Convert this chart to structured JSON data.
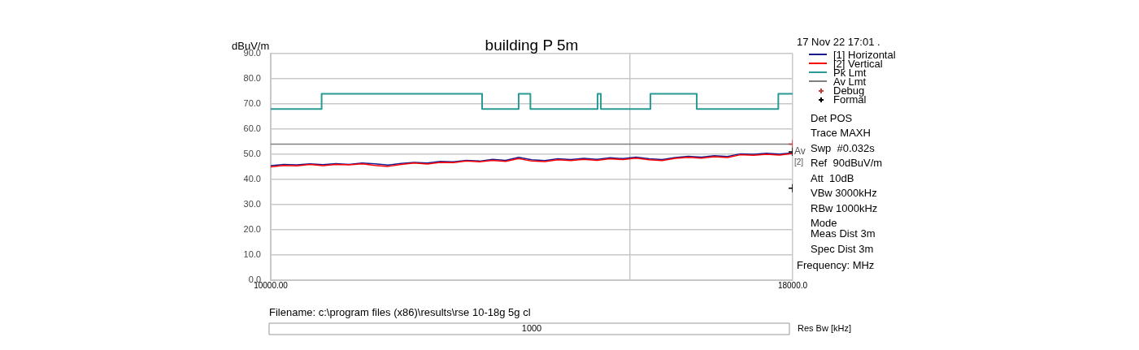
{
  "chart_data": {
    "type": "line",
    "title": "building P 5m",
    "ylabel": "dBuV/m",
    "xlabel": "Frequency: MHz",
    "xlim": [
      10000,
      18000
    ],
    "xticks": [
      {
        "value": 10000,
        "label": "10000.00"
      },
      {
        "value": 15500,
        "label": null
      },
      {
        "value": 18000,
        "label": "18000.0"
      }
    ],
    "ylim": [
      0,
      90
    ],
    "yticks": [
      {
        "value": 0,
        "label": "0.0"
      },
      {
        "value": 10,
        "label": "10.0"
      },
      {
        "value": 20,
        "label": "20.0"
      },
      {
        "value": 30,
        "label": "30.0"
      },
      {
        "value": 40,
        "label": "40.0"
      },
      {
        "value": 50,
        "label": "50.0"
      },
      {
        "value": 60,
        "label": "60.0"
      },
      {
        "value": 70,
        "label": "70.0"
      },
      {
        "value": 80,
        "label": "80.0"
      },
      {
        "value": 90,
        "label": "90.0"
      }
    ],
    "grid": true,
    "legend": "right",
    "x": [
      10000,
      10200,
      10400,
      10600,
      10800,
      11000,
      11200,
      11400,
      11600,
      11800,
      12000,
      12200,
      12400,
      12600,
      12800,
      13000,
      13200,
      13400,
      13600,
      13800,
      14000,
      14200,
      14400,
      14600,
      14800,
      15000,
      15200,
      15400,
      15600,
      15800,
      16000,
      16200,
      16400,
      16600,
      16800,
      17000,
      17200,
      17400,
      17600,
      17800,
      18000
    ],
    "series": [
      {
        "name": "[1] Horizontal",
        "color": "#1a1a8c",
        "values": [
          45.5,
          46,
          45.8,
          46.2,
          45.9,
          46.3,
          46,
          46.5,
          46.2,
          45.7,
          46.4,
          46.8,
          46.5,
          47.2,
          47,
          47.6,
          47.3,
          48,
          47.6,
          48.8,
          47.8,
          47.5,
          48.2,
          47.9,
          48.4,
          48,
          48.6,
          48.3,
          48.9,
          48.2,
          47.9,
          48.7,
          49.2,
          48.9,
          49.4,
          49.1,
          50.2,
          50,
          50.4,
          50.1,
          50.6
        ]
      },
      {
        "name": "[2] Vertical",
        "color": "#ff0000",
        "values": [
          45,
          45.6,
          45.4,
          46,
          45.5,
          46,
          45.8,
          46.2,
          45.6,
          45.2,
          46,
          46.5,
          46.1,
          46.8,
          46.7,
          47.3,
          47,
          47.6,
          47.2,
          48.3,
          47.3,
          47.1,
          47.8,
          47.5,
          48,
          47.6,
          48.2,
          47.9,
          48.5,
          47.8,
          47.5,
          48.4,
          48.8,
          48.5,
          49,
          48.7,
          49.8,
          49.6,
          50,
          49.7,
          50.3
        ]
      },
      {
        "name": "Pk Lmt",
        "type": "step",
        "color": "#2a9a94",
        "x": [
          10000,
          10780,
          13240,
          13800,
          13980,
          15010,
          15060,
          15820,
          16530,
          17780,
          18000
        ],
        "values": [
          68,
          74,
          68,
          74,
          68,
          74,
          68,
          74,
          68,
          74,
          74
        ]
      },
      {
        "name": "Av Lmt",
        "color": "#808080",
        "x": [
          10000,
          18000
        ],
        "values": [
          54,
          54
        ]
      },
      {
        "name": "Debug",
        "type": "scatter",
        "marker": "cross",
        "color": "#c04040",
        "x": [
          18000
        ],
        "values": [
          54
        ]
      },
      {
        "name": "Formal",
        "type": "scatter",
        "marker": "cross",
        "color": "#000000",
        "x": [
          18000,
          18000
        ],
        "values": [
          51,
          36.5
        ]
      }
    ],
    "annotations": [
      "17 Nov 22 17:01 .",
      "Det POS",
      "Trace MAXH",
      "Swp  #0.032s",
      "Ref  90dBuV/m",
      "Att  10dB",
      "VBw 3000kHz",
      "RBw 1000kHz",
      "Mode",
      "Meas Dist 3m",
      "Spec Dist 3m",
      {
        "text": "Av",
        "x": 18000,
        "y": 51
      },
      "Filename: c:\\program files (x86)\\results\\rse 10-18g 5g cl",
      "1000",
      "Res Bw [kHz]",
      "[2]"
    ]
  }
}
